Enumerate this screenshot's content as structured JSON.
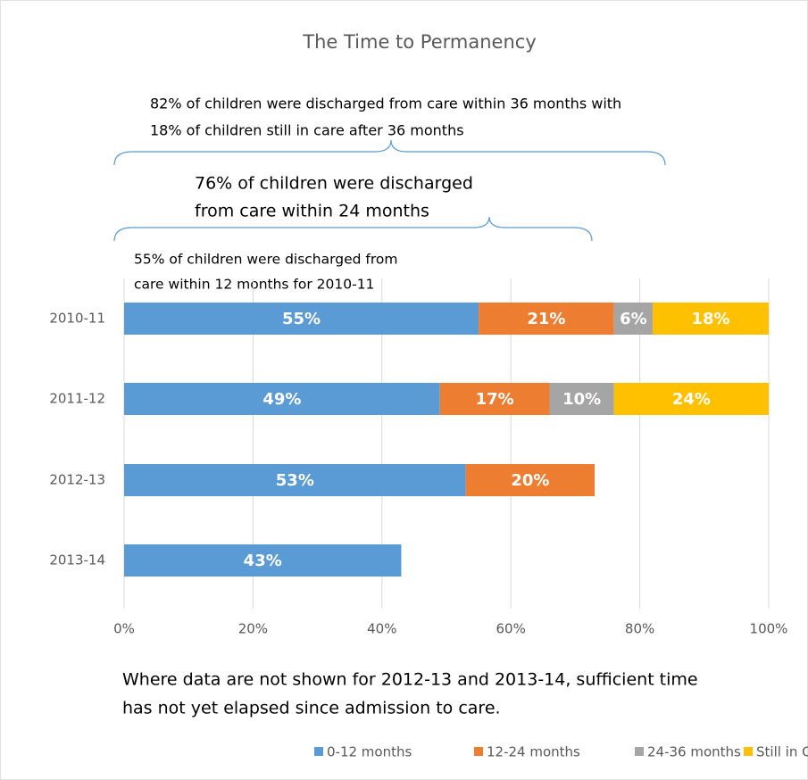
{
  "chart_data": {
    "type": "stacked-barh",
    "title": "The Time to Permanency",
    "annotations": [
      [
        "82% of children were discharged from care within 36 months with",
        "18% of children still in care after 36 months"
      ],
      [
        "76% of children were discharged",
        "from care within 24 months"
      ],
      [
        "55% of children were discharged from",
        "care within 12 months for 2010-11"
      ]
    ],
    "note": [
      "Where data are not shown for 2012-13 and 2013-14, sufficient time",
      "has not yet elapsed since admission to care."
    ],
    "categories": [
      "2010-11",
      "2011-12",
      "2012-13",
      "2013-14"
    ],
    "series": [
      {
        "name": "0-12 months",
        "color": "#5b9bd5",
        "values": [
          55,
          49,
          53,
          43
        ],
        "value_labels": [
          "55%",
          "49%",
          "53%",
          "43%"
        ]
      },
      {
        "name": "12-24 months",
        "color": "#ed7d31",
        "values": [
          21,
          17,
          20,
          null
        ],
        "value_labels": [
          "21%",
          "17%",
          "20%",
          null
        ]
      },
      {
        "name": "24-36 months",
        "color": "#a5a5a5",
        "values": [
          6,
          10,
          null,
          null
        ],
        "value_labels": [
          "6%",
          "10%",
          null,
          null
        ]
      },
      {
        "name": "Still in Care",
        "color": "#ffc000",
        "values": [
          18,
          24,
          null,
          null
        ],
        "value_labels": [
          "18%",
          "24%",
          null,
          null
        ]
      }
    ],
    "xlim": [
      0,
      100
    ],
    "xticks": [
      {
        "value": 0,
        "label": "0%"
      },
      {
        "value": 20,
        "label": "20%"
      },
      {
        "value": 40,
        "label": "40%"
      },
      {
        "value": 60,
        "label": "60%"
      },
      {
        "value": 80,
        "label": "80%"
      },
      {
        "value": 100,
        "label": "100%"
      }
    ],
    "grid": true,
    "legend": "bottom"
  }
}
